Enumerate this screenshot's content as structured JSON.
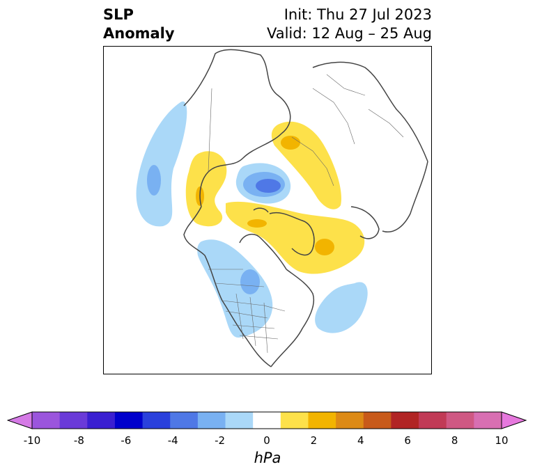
{
  "title": {
    "left_line1": "SLP",
    "left_line2": "Anomaly",
    "right_line1": "Init: Thu 27 Jul 2023",
    "right_line2": "Valid: 12 Aug – 25 Aug"
  },
  "colorbar": {
    "label": "hPa",
    "ticks": [
      "-10",
      "-8",
      "-6",
      "-4",
      "-2",
      "0",
      "2",
      "4",
      "6",
      "8",
      "10"
    ],
    "colors": [
      "#d57ae6",
      "#9b55dd",
      "#6a3ad8",
      "#3a1fd1",
      "#0000cc",
      "#2a40dc",
      "#4f78e6",
      "#79b1f2",
      "#aad8f8",
      "#ffffff",
      "#fde14a",
      "#f2b400",
      "#dd8a15",
      "#c85a1a",
      "#b12424",
      "#c13a56",
      "#cf5883",
      "#d86fb2",
      "#e678dd"
    ],
    "min": -10,
    "max": 10
  },
  "map": {
    "projection": "north-polar-stereographic",
    "features": [
      {
        "name": "negative-anomaly-north-pacific",
        "sign": "negative",
        "peak": -1.5
      },
      {
        "name": "negative-anomaly-arctic-ocean",
        "sign": "negative",
        "peak": -4
      },
      {
        "name": "negative-anomaly-central-north-america",
        "sign": "negative",
        "peak": -2
      },
      {
        "name": "negative-anomaly-north-atlantic",
        "sign": "negative",
        "peak": -1.5
      },
      {
        "name": "positive-anomaly-alaska",
        "sign": "positive",
        "peak": 2
      },
      {
        "name": "positive-anomaly-greenland-canada",
        "sign": "positive",
        "peak": 2
      },
      {
        "name": "positive-anomaly-scandinavia-siberia",
        "sign": "positive",
        "peak": 1.5
      }
    ]
  }
}
